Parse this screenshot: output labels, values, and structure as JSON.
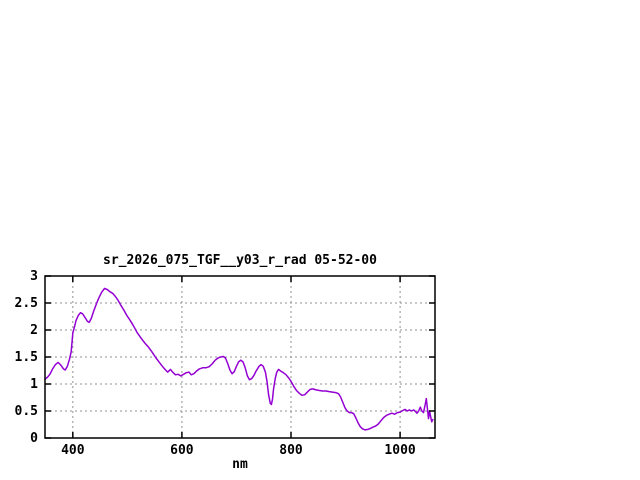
{
  "window": {
    "background": "#ffffff"
  },
  "chart_data": {
    "type": "line",
    "title": "sr_2026_075_TGF__y03_r_rad 05-52-00",
    "xlabel": "nm",
    "ylabel": "",
    "xlim": [
      349,
      1064
    ],
    "ylim": [
      0,
      3
    ],
    "xticks": [
      400,
      600,
      800,
      1000
    ],
    "xtick_labels": [
      "400",
      "600",
      "800",
      "1000"
    ],
    "yticks": [
      0,
      0.5,
      1,
      1.5,
      2,
      2.5,
      3
    ],
    "ytick_labels": [
      "0",
      "0.5",
      "1",
      "1.5",
      "2",
      "2.5",
      "3"
    ],
    "grid": true,
    "legend": "none",
    "colors": {
      "line": "#9400d3",
      "grid": "#909090",
      "border": "#000000",
      "text": "#000000",
      "background": "#ffffff"
    },
    "series": [
      {
        "name": "sr_2026_075_TGF__y03_r_rad",
        "points": [
          [
            349,
            1.09
          ],
          [
            353,
            1.12
          ],
          [
            358,
            1.18
          ],
          [
            363,
            1.28
          ],
          [
            368,
            1.36
          ],
          [
            373,
            1.4
          ],
          [
            378,
            1.35
          ],
          [
            383,
            1.28
          ],
          [
            386,
            1.26
          ],
          [
            390,
            1.33
          ],
          [
            394,
            1.46
          ],
          [
            397,
            1.6
          ],
          [
            400,
            1.94
          ],
          [
            403,
            2.06
          ],
          [
            406,
            2.18
          ],
          [
            410,
            2.27
          ],
          [
            414,
            2.32
          ],
          [
            418,
            2.3
          ],
          [
            423,
            2.22
          ],
          [
            427,
            2.16
          ],
          [
            430,
            2.14
          ],
          [
            434,
            2.22
          ],
          [
            438,
            2.34
          ],
          [
            443,
            2.48
          ],
          [
            448,
            2.6
          ],
          [
            453,
            2.7
          ],
          [
            458,
            2.77
          ],
          [
            463,
            2.75
          ],
          [
            468,
            2.71
          ],
          [
            473,
            2.68
          ],
          [
            478,
            2.62
          ],
          [
            483,
            2.55
          ],
          [
            488,
            2.46
          ],
          [
            493,
            2.38
          ],
          [
            499,
            2.27
          ],
          [
            505,
            2.18
          ],
          [
            511,
            2.08
          ],
          [
            518,
            1.95
          ],
          [
            525,
            1.85
          ],
          [
            532,
            1.76
          ],
          [
            539,
            1.68
          ],
          [
            546,
            1.58
          ],
          [
            552,
            1.49
          ],
          [
            558,
            1.41
          ],
          [
            564,
            1.33
          ],
          [
            569,
            1.27
          ],
          [
            574,
            1.22
          ],
          [
            579,
            1.27
          ],
          [
            583,
            1.22
          ],
          [
            588,
            1.17
          ],
          [
            593,
            1.18
          ],
          [
            598,
            1.15
          ],
          [
            603,
            1.18
          ],
          [
            608,
            1.21
          ],
          [
            613,
            1.22
          ],
          [
            617,
            1.17
          ],
          [
            622,
            1.19
          ],
          [
            627,
            1.24
          ],
          [
            632,
            1.28
          ],
          [
            638,
            1.3
          ],
          [
            644,
            1.3
          ],
          [
            650,
            1.32
          ],
          [
            656,
            1.38
          ],
          [
            661,
            1.44
          ],
          [
            666,
            1.48
          ],
          [
            671,
            1.5
          ],
          [
            676,
            1.51
          ],
          [
            680,
            1.48
          ],
          [
            684,
            1.38
          ],
          [
            688,
            1.26
          ],
          [
            692,
            1.19
          ],
          [
            696,
            1.23
          ],
          [
            700,
            1.33
          ],
          [
            704,
            1.41
          ],
          [
            708,
            1.44
          ],
          [
            712,
            1.41
          ],
          [
            716,
            1.3
          ],
          [
            720,
            1.15
          ],
          [
            724,
            1.08
          ],
          [
            728,
            1.1
          ],
          [
            732,
            1.16
          ],
          [
            736,
            1.24
          ],
          [
            741,
            1.32
          ],
          [
            745,
            1.36
          ],
          [
            749,
            1.33
          ],
          [
            753,
            1.22
          ],
          [
            756,
            1.05
          ],
          [
            759,
            0.8
          ],
          [
            762,
            0.64
          ],
          [
            764,
            0.62
          ],
          [
            766,
            0.72
          ],
          [
            768,
            0.9
          ],
          [
            771,
            1.1
          ],
          [
            774,
            1.22
          ],
          [
            777,
            1.27
          ],
          [
            781,
            1.24
          ],
          [
            786,
            1.21
          ],
          [
            791,
            1.17
          ],
          [
            796,
            1.11
          ],
          [
            800,
            1.05
          ],
          [
            805,
            0.96
          ],
          [
            810,
            0.88
          ],
          [
            815,
            0.83
          ],
          [
            820,
            0.79
          ],
          [
            825,
            0.8
          ],
          [
            830,
            0.85
          ],
          [
            835,
            0.9
          ],
          [
            840,
            0.91
          ],
          [
            846,
            0.89
          ],
          [
            852,
            0.88
          ],
          [
            858,
            0.87
          ],
          [
            864,
            0.87
          ],
          [
            870,
            0.86
          ],
          [
            876,
            0.85
          ],
          [
            882,
            0.84
          ],
          [
            887,
            0.82
          ],
          [
            891,
            0.76
          ],
          [
            895,
            0.66
          ],
          [
            899,
            0.56
          ],
          [
            903,
            0.5
          ],
          [
            907,
            0.47
          ],
          [
            911,
            0.47
          ],
          [
            915,
            0.45
          ],
          [
            919,
            0.37
          ],
          [
            923,
            0.28
          ],
          [
            927,
            0.21
          ],
          [
            931,
            0.17
          ],
          [
            936,
            0.15
          ],
          [
            941,
            0.16
          ],
          [
            946,
            0.18
          ],
          [
            950,
            0.2
          ],
          [
            955,
            0.22
          ],
          [
            960,
            0.26
          ],
          [
            965,
            0.32
          ],
          [
            970,
            0.38
          ],
          [
            975,
            0.42
          ],
          [
            980,
            0.44
          ],
          [
            985,
            0.46
          ],
          [
            990,
            0.44
          ],
          [
            995,
            0.47
          ],
          [
            1000,
            0.48
          ],
          [
            1005,
            0.51
          ],
          [
            1009,
            0.53
          ],
          [
            1013,
            0.5
          ],
          [
            1017,
            0.52
          ],
          [
            1021,
            0.5
          ],
          [
            1025,
            0.52
          ],
          [
            1028,
            0.49
          ],
          [
            1031,
            0.46
          ],
          [
            1034,
            0.5
          ],
          [
            1037,
            0.57
          ],
          [
            1040,
            0.5
          ],
          [
            1043,
            0.47
          ],
          [
            1046,
            0.62
          ],
          [
            1048,
            0.73
          ],
          [
            1050,
            0.55
          ],
          [
            1052,
            0.36
          ],
          [
            1054,
            0.5
          ],
          [
            1056,
            0.4
          ],
          [
            1058,
            0.3
          ],
          [
            1060,
            0.34
          ]
        ]
      }
    ]
  }
}
